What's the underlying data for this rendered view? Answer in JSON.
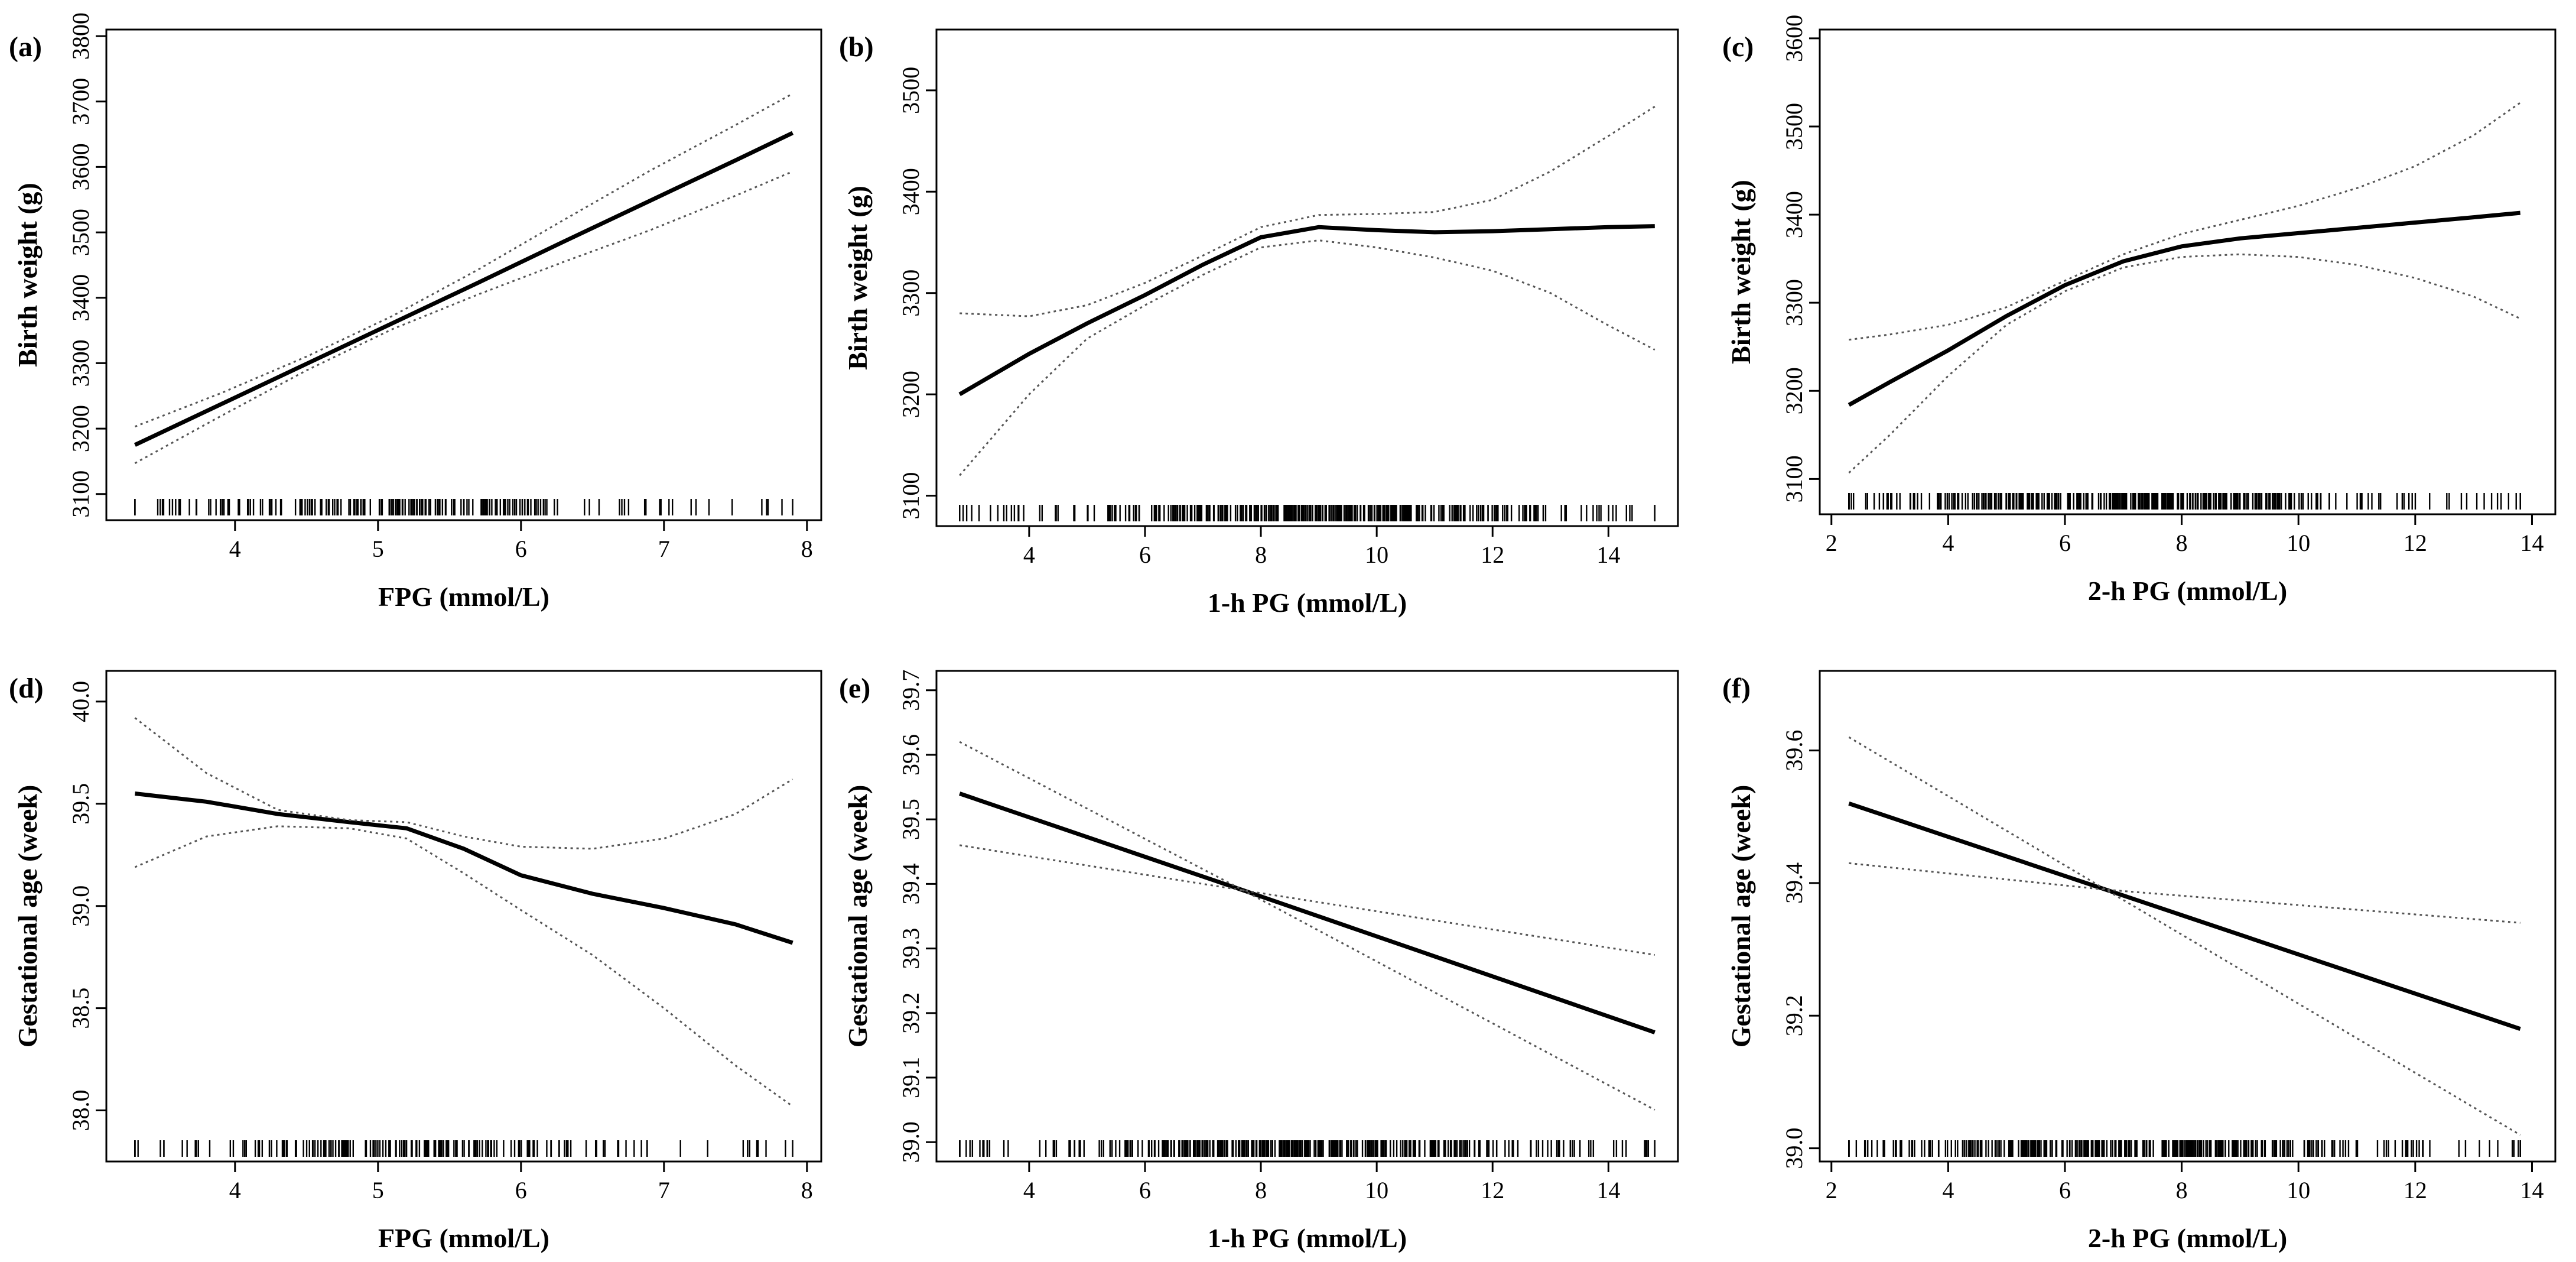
{
  "chart_data": [
    {
      "type": "line",
      "label": "(a)",
      "xlabel": "FPG (mmol/L)",
      "ylabel": "Birth weight (g)",
      "xlim": [
        3.1,
        8.1
      ],
      "ylim": [
        3060,
        3810
      ],
      "xticks": [
        4,
        5,
        6,
        7,
        8
      ],
      "yticks": [
        3100,
        3200,
        3300,
        3400,
        3500,
        3600,
        3700,
        3800
      ],
      "rug": {
        "min": 3.3,
        "max": 7.9,
        "center": 5.1,
        "spread": 0.85,
        "count": 160
      },
      "series": [
        {
          "name": "fit",
          "x": [
            3.3,
            3.9,
            4.5,
            5.1,
            5.7,
            6.3,
            6.9,
            7.5,
            7.9
          ],
          "y": [
            3175,
            3237,
            3299,
            3361,
            3423,
            3486,
            3548,
            3610,
            3652
          ]
        },
        {
          "name": "upper",
          "x": [
            3.3,
            3.9,
            4.5,
            5.1,
            5.7,
            6.3,
            6.9,
            7.5,
            7.9
          ],
          "y": [
            3203,
            3254,
            3310,
            3372,
            3443,
            3519,
            3594,
            3664,
            3712
          ]
        },
        {
          "name": "lower",
          "x": [
            3.3,
            3.9,
            4.5,
            5.1,
            5.7,
            6.3,
            6.9,
            7.5,
            7.9
          ],
          "y": [
            3147,
            3219,
            3289,
            3352,
            3405,
            3455,
            3503,
            3556,
            3593
          ]
        }
      ]
    },
    {
      "type": "line",
      "label": "(b)",
      "xlabel": "1-h PG (mmol/L)",
      "ylabel": "Birth weight (g)",
      "xlim": [
        2.4,
        15.2
      ],
      "ylim": [
        3070,
        3560
      ],
      "xticks": [
        4,
        6,
        8,
        10,
        12,
        14
      ],
      "yticks": [
        3100,
        3200,
        3300,
        3400,
        3500
      ],
      "rug": {
        "min": 2.8,
        "max": 14.8,
        "center": 8.6,
        "spread": 2.4,
        "count": 320
      },
      "series": [
        {
          "name": "fit",
          "x": [
            2.8,
            4,
            5,
            6,
            7,
            8,
            9,
            10,
            11,
            12,
            13,
            14,
            14.8
          ],
          "y": [
            3200,
            3240,
            3270,
            3298,
            3328,
            3355,
            3365,
            3362,
            3360,
            3361,
            3363,
            3365,
            3366
          ]
        },
        {
          "name": "upper",
          "x": [
            2.8,
            4,
            5,
            6,
            7,
            8,
            9,
            10,
            11,
            12,
            13,
            14,
            14.8
          ],
          "y": [
            3280,
            3277,
            3288,
            3310,
            3337,
            3365,
            3377,
            3378,
            3380,
            3392,
            3420,
            3455,
            3484
          ]
        },
        {
          "name": "lower",
          "x": [
            2.8,
            4,
            5,
            6,
            7,
            8,
            9,
            10,
            11,
            12,
            13,
            14,
            14.8
          ],
          "y": [
            3120,
            3200,
            3255,
            3288,
            3318,
            3345,
            3352,
            3345,
            3335,
            3322,
            3300,
            3268,
            3244
          ]
        }
      ]
    },
    {
      "type": "line",
      "label": "(c)",
      "xlabel": "2-h PG (mmol/L)",
      "ylabel": "Birth weight (g)",
      "xlim": [
        1.8,
        14.4
      ],
      "ylim": [
        3060,
        3610
      ],
      "xticks": [
        2,
        4,
        6,
        8,
        10,
        12,
        14
      ],
      "yticks": [
        3100,
        3200,
        3300,
        3400,
        3500,
        3600
      ],
      "rug": {
        "min": 2.3,
        "max": 13.8,
        "center": 7.3,
        "spread": 2.5,
        "count": 320
      },
      "series": [
        {
          "name": "fit",
          "x": [
            2.3,
            3,
            4,
            5,
            6,
            7,
            8,
            9,
            10,
            11,
            12,
            13,
            13.8
          ],
          "y": [
            3184,
            3210,
            3246,
            3285,
            3320,
            3347,
            3364,
            3373,
            3379,
            3385,
            3391,
            3397,
            3402
          ]
        },
        {
          "name": "upper",
          "x": [
            2.3,
            3,
            4,
            5,
            6,
            7,
            8,
            9,
            10,
            11,
            12,
            13,
            13.8
          ],
          "y": [
            3258,
            3264,
            3275,
            3295,
            3325,
            3355,
            3378,
            3394,
            3410,
            3430,
            3455,
            3490,
            3527
          ]
        },
        {
          "name": "lower",
          "x": [
            2.3,
            3,
            4,
            5,
            6,
            7,
            8,
            9,
            10,
            11,
            12,
            13,
            13.8
          ],
          "y": [
            3107,
            3150,
            3217,
            3275,
            3313,
            3340,
            3352,
            3355,
            3352,
            3343,
            3328,
            3307,
            3282
          ]
        }
      ]
    },
    {
      "type": "line",
      "label": "(d)",
      "xlabel": "FPG (mmol/L)",
      "ylabel": "Gestational age (week)",
      "xlim": [
        3.1,
        8.1
      ],
      "ylim": [
        37.75,
        40.15
      ],
      "xticks": [
        4,
        5,
        6,
        7,
        8
      ],
      "yticks": [
        38.0,
        38.5,
        39.0,
        39.5,
        40.0
      ],
      "ytick_labels": [
        "38.0",
        "38.5",
        "39.0",
        "39.5",
        "40.0"
      ],
      "rug": {
        "min": 3.3,
        "max": 7.9,
        "center": 5.1,
        "spread": 0.85,
        "count": 160
      },
      "series": [
        {
          "name": "fit",
          "x": [
            3.3,
            3.8,
            4.3,
            4.8,
            5.2,
            5.6,
            6.0,
            6.5,
            7.0,
            7.5,
            7.9
          ],
          "y": [
            39.55,
            39.51,
            39.45,
            39.41,
            39.38,
            39.28,
            39.15,
            39.06,
            38.99,
            38.91,
            38.82
          ]
        },
        {
          "name": "upper",
          "x": [
            3.3,
            3.8,
            4.3,
            4.8,
            5.2,
            5.6,
            6.0,
            6.5,
            7.0,
            7.5,
            7.9
          ],
          "y": [
            39.92,
            39.65,
            39.47,
            39.42,
            39.41,
            39.34,
            39.29,
            39.28,
            39.33,
            39.45,
            39.62
          ]
        },
        {
          "name": "lower",
          "x": [
            3.3,
            3.8,
            4.3,
            4.8,
            5.2,
            5.6,
            6.0,
            6.5,
            7.0,
            7.5,
            7.9
          ],
          "y": [
            39.19,
            39.34,
            39.39,
            39.38,
            39.33,
            39.16,
            38.98,
            38.76,
            38.5,
            38.22,
            38.02
          ]
        }
      ]
    },
    {
      "type": "line",
      "label": "(e)",
      "xlabel": "1-h PG (mmol/L)",
      "ylabel": "Gestational age (week)",
      "xlim": [
        2.4,
        15.2
      ],
      "ylim": [
        38.97,
        39.73
      ],
      "xticks": [
        4,
        6,
        8,
        10,
        12,
        14
      ],
      "yticks": [
        39.0,
        39.1,
        39.2,
        39.3,
        39.4,
        39.5,
        39.6,
        39.7
      ],
      "ytick_labels": [
        "39.0",
        "39.1",
        "39.2",
        "39.3",
        "39.4",
        "39.5",
        "39.6",
        "39.7"
      ],
      "rug": {
        "min": 2.8,
        "max": 14.8,
        "center": 8.6,
        "spread": 2.4,
        "count": 320
      },
      "series": [
        {
          "name": "fit",
          "x": [
            2.8,
            7.7,
            14.8
          ],
          "y": [
            39.54,
            39.39,
            39.17
          ]
        },
        {
          "name": "upper",
          "x": [
            2.8,
            7.7,
            14.8
          ],
          "y": [
            39.46,
            39.39,
            39.29
          ]
        },
        {
          "name": "lower",
          "x": [
            2.8,
            7.7,
            14.8
          ],
          "y": [
            39.62,
            39.39,
            39.05
          ]
        }
      ]
    },
    {
      "type": "line",
      "label": "(f)",
      "xlabel": "2-h PG (mmol/L)",
      "ylabel": "Gestational age (week)",
      "xlim": [
        1.8,
        14.4
      ],
      "ylim": [
        38.98,
        39.72
      ],
      "xticks": [
        2,
        4,
        6,
        8,
        10,
        12,
        14
      ],
      "yticks": [
        39.0,
        39.2,
        39.4,
        39.6
      ],
      "ytick_labels": [
        "39.0",
        "39.2",
        "39.4",
        "39.6"
      ],
      "rug": {
        "min": 2.3,
        "max": 13.8,
        "center": 7.3,
        "spread": 2.5,
        "count": 320
      },
      "series": [
        {
          "name": "fit",
          "x": [
            2.3,
            6.7,
            13.8
          ],
          "y": [
            39.52,
            39.39,
            39.18
          ]
        },
        {
          "name": "upper",
          "x": [
            2.3,
            6.7,
            13.8
          ],
          "y": [
            39.43,
            39.39,
            39.34
          ]
        },
        {
          "name": "lower",
          "x": [
            2.3,
            6.7,
            13.8
          ],
          "y": [
            39.62,
            39.39,
            39.02
          ]
        }
      ]
    }
  ]
}
